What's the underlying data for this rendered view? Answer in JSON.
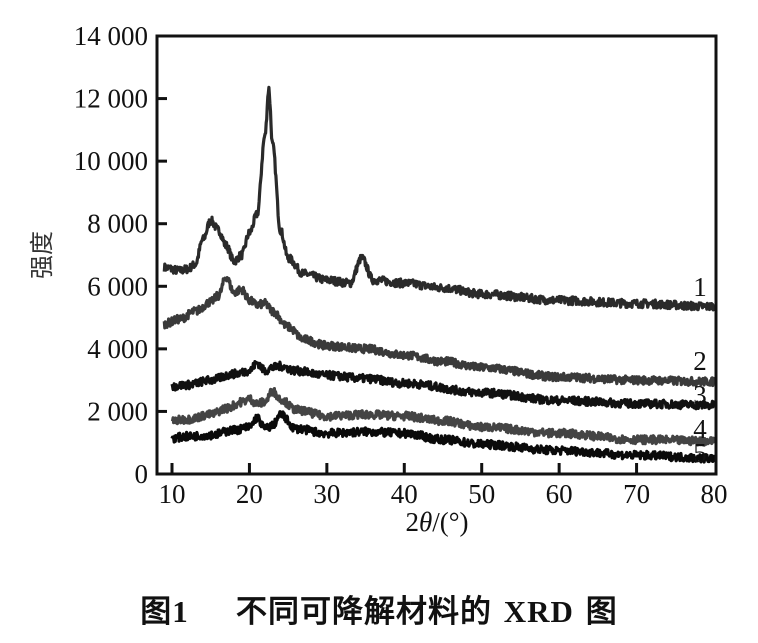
{
  "chart_data": {
    "type": "line",
    "title": "",
    "xlabel": "2θ/(°)",
    "ylabel": "强度",
    "xlim": [
      9,
      80
    ],
    "ylim": [
      0,
      14000
    ],
    "x_ticks": [
      10,
      20,
      30,
      40,
      50,
      60,
      70,
      80
    ],
    "y_ticks": [
      0,
      2000,
      4000,
      6000,
      8000,
      10000,
      12000,
      14000
    ],
    "y_tick_labels": [
      "0",
      "2 000",
      "4 000",
      "6 000",
      "8 000",
      "10 000",
      "12 000",
      "14 000"
    ],
    "grid": false,
    "legend": "inline numeric labels at right end of curves",
    "series": [
      {
        "name": "1",
        "color": "#2a2a2a",
        "x": [
          9,
          11,
          12,
          13,
          14,
          15,
          16,
          17,
          18,
          19,
          20,
          21,
          22,
          22.5,
          23,
          24,
          25,
          27,
          30,
          33,
          34.5,
          36,
          40,
          45,
          50,
          60,
          70,
          80
        ],
        "y": [
          6600,
          6500,
          6550,
          6700,
          7500,
          8100,
          7800,
          7300,
          6800,
          7000,
          7700,
          8300,
          10800,
          12300,
          10500,
          7800,
          6900,
          6400,
          6200,
          6100,
          6900,
          6200,
          6100,
          5950,
          5750,
          5550,
          5450,
          5350
        ]
      },
      {
        "name": "2",
        "color": "#3a3a3a",
        "x": [
          9,
          11,
          13,
          15,
          16,
          17,
          18,
          19,
          20,
          21,
          22,
          23,
          25,
          27,
          30,
          35,
          40,
          45,
          50,
          60,
          70,
          80
        ],
        "y": [
          4800,
          4950,
          5200,
          5500,
          5700,
          6300,
          5800,
          5900,
          5550,
          5400,
          5450,
          5200,
          4700,
          4300,
          4100,
          4000,
          3800,
          3600,
          3400,
          3100,
          3000,
          2950
        ]
      },
      {
        "name": "3",
        "color": "#111111",
        "x": [
          10,
          12,
          15,
          18,
          20,
          21,
          22,
          23,
          24,
          26,
          30,
          35,
          40,
          50,
          60,
          70,
          80
        ],
        "y": [
          2800,
          2850,
          3000,
          3200,
          3300,
          3550,
          3300,
          3400,
          3450,
          3300,
          3150,
          3050,
          2900,
          2600,
          2350,
          2250,
          2200
        ]
      },
      {
        "name": "4",
        "color": "#444444",
        "x": [
          10,
          12,
          15,
          17,
          19,
          20,
          21,
          22,
          23,
          24,
          26,
          30,
          35,
          40,
          45,
          50,
          60,
          70,
          80
        ],
        "y": [
          1700,
          1750,
          1900,
          2100,
          2300,
          2400,
          2250,
          2300,
          2650,
          2400,
          2050,
          1850,
          1900,
          1850,
          1700,
          1500,
          1300,
          1100,
          1050
        ]
      },
      {
        "name": "5",
        "color": "#0a0a0a",
        "x": [
          10,
          12,
          15,
          18,
          20,
          21,
          22,
          23,
          24,
          26,
          30,
          35,
          40,
          45,
          50,
          60,
          70,
          80
        ],
        "y": [
          1150,
          1200,
          1250,
          1400,
          1500,
          1800,
          1450,
          1550,
          1900,
          1450,
          1300,
          1350,
          1300,
          1100,
          950,
          750,
          600,
          500
        ]
      }
    ]
  },
  "axis": {
    "x_title_prefix": "2",
    "x_title_theta": "θ",
    "x_title_suffix": "/(°)",
    "y_title": "强度"
  },
  "caption": {
    "prefix": "图",
    "number": "1",
    "text": "不同可降解材料的",
    "abbr": "XRD",
    "suffix": "图"
  }
}
